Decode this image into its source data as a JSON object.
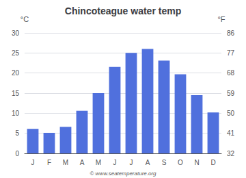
{
  "chart_data": {
    "type": "bar",
    "title": "Chincoteague water temp",
    "categories": [
      "J",
      "F",
      "M",
      "A",
      "M",
      "J",
      "J",
      "A",
      "S",
      "O",
      "N",
      "D"
    ],
    "values": [
      6.1,
      5.1,
      6.6,
      10.6,
      15.0,
      21.5,
      25.0,
      26.0,
      23.1,
      19.7,
      14.5,
      10.2
    ],
    "ylabel": "°C",
    "y2label": "°F",
    "ylim": [
      0,
      30
    ],
    "yticks": [
      0,
      5,
      10,
      15,
      20,
      25,
      30
    ],
    "y2lim": [
      32,
      86
    ],
    "y2ticks": [
      32,
      41,
      50,
      59,
      68,
      77,
      86
    ],
    "grid": true,
    "annotations": [
      "© www.seatemperature.org"
    ]
  }
}
